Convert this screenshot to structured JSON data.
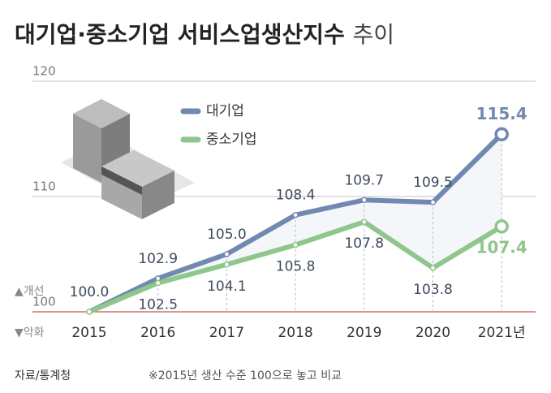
{
  "chart_data": {
    "type": "line",
    "title": "대기업·중소기업 서비스업생산지수",
    "title_suffix": "추이",
    "categories": [
      "2015",
      "2016",
      "2017",
      "2018",
      "2019",
      "2020",
      "2021년"
    ],
    "series": [
      {
        "name": "대기업",
        "color": "#7189b0",
        "values": [
          100,
          102.9,
          105,
          108.4,
          109.7,
          109.5,
          115.4
        ],
        "value_labels": [
          "100.0",
          "102.9",
          "105.0",
          "108.4",
          "109.7",
          "109.5",
          "115.4"
        ]
      },
      {
        "name": "중소기업",
        "color": "#8ec68b",
        "values": [
          100,
          102.5,
          104.1,
          105.8,
          107.8,
          103.8,
          107.4
        ],
        "value_labels": [
          null,
          "102.5",
          "104.1",
          "105.8",
          "107.8",
          "103.8",
          "107.4"
        ]
      }
    ],
    "ylim": [
      100,
      120
    ],
    "yticks": [
      100,
      110,
      120
    ],
    "grid": true,
    "annotations": {
      "up": "▲개선",
      "down": "▼악화"
    },
    "source": "자료/통계청",
    "note": "※2015년 생산 수준 100으로 놓고 비교"
  }
}
